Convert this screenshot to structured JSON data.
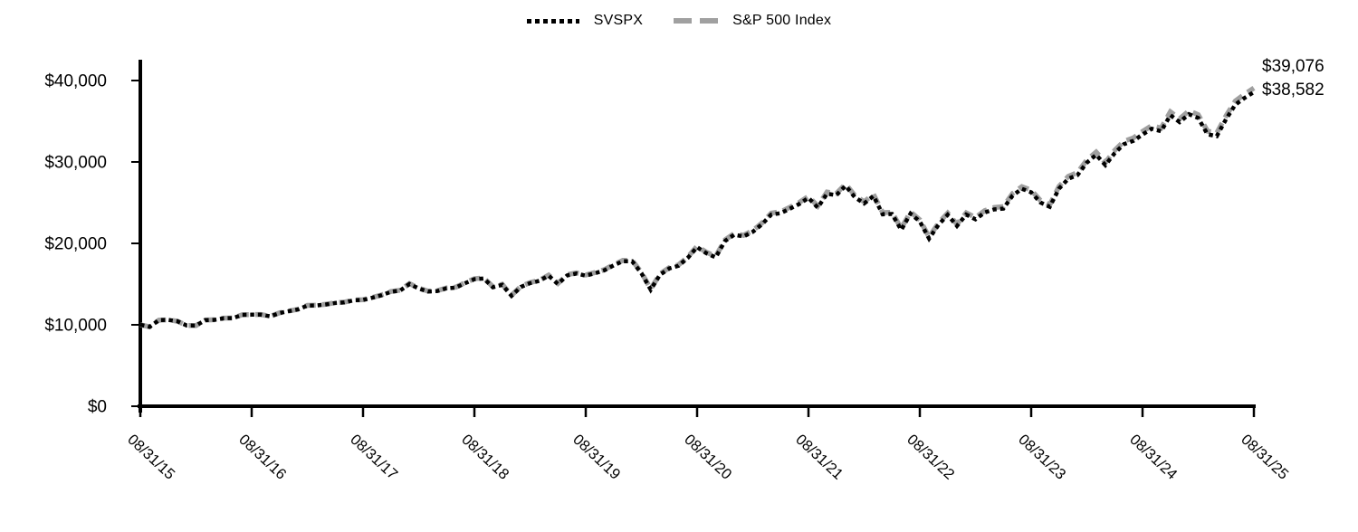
{
  "legend": {
    "items": [
      {
        "label": "SVSPX",
        "color": "#000000",
        "line_style": "dotted"
      },
      {
        "label": "S&P 500 Index",
        "color": "#a0a0a0",
        "line_style": "dashed"
      }
    ]
  },
  "chart_data": {
    "type": "line",
    "title": "",
    "xlabel": "",
    "ylabel": "",
    "ylim": [
      0,
      40000
    ],
    "y_tick_values": [
      0,
      10000,
      20000,
      30000,
      40000
    ],
    "y_tick_labels": [
      "$0",
      "$10,000",
      "$20,000",
      "$30,000",
      "$40,000"
    ],
    "x_tick_labels": [
      "08/31/15",
      "08/31/16",
      "08/31/17",
      "08/31/18",
      "08/31/19",
      "08/31/20",
      "08/31/21",
      "08/31/22",
      "08/31/23",
      "08/31/24",
      "08/31/25"
    ],
    "x_points_per_interval": 12,
    "grid": false,
    "legend_position": "top-center",
    "series": [
      {
        "name": "SVSPX",
        "color": "#000000",
        "dash": "dotted",
        "end_label": "$38,582",
        "end_value": 38582,
        "values": [
          10000,
          9752,
          10574,
          10605,
          10436,
          9917,
          9903,
          10573,
          10613,
          10803,
          10830,
          11228,
          11243,
          11243,
          11038,
          11445,
          11670,
          11891,
          12361,
          12375,
          12501,
          12676,
          12756,
          13017,
          13056,
          13324,
          13632,
          14050,
          14204,
          15016,
          14460,
          14091,
          14144,
          14483,
          14572,
          15112,
          15602,
          15689,
          14615,
          14911,
          13563,
          14648,
          15116,
          15408,
          16031,
          15011,
          16067,
          16298,
          16038,
          16336,
          16688,
          17292,
          17812,
          17805,
          16335,
          14317,
          16151,
          16918,
          17252,
          18224,
          19531,
          18787,
          18285,
          20284,
          21061,
          20846,
          21419,
          22355,
          23546,
          23708,
          24258,
          24833,
          25586,
          24393,
          26101,
          25918,
          27074,
          25672,
          24902,
          25822,
          23568,
          23610,
          21660,
          23655,
          22687,
          20596,
          22262,
          23503,
          22147,
          23535,
          22958,
          23799,
          24168,
          24271,
          25872,
          26701,
          26273,
          25019,
          24490,
          26724,
          27933,
          28401,
          29915,
          30875,
          29613,
          31080,
          32191,
          32581,
          33371,
          34082,
          33769,
          35749,
          34895,
          35865,
          35395,
          33398,
          33167,
          35250,
          37041,
          37868,
          38582
        ]
      },
      {
        "name": "S&P 500 Index",
        "color": "#a0a0a0",
        "dash": "dashed",
        "end_label": "$39,076",
        "end_value": 39076,
        "values": [
          10000,
          9753,
          10576,
          10608,
          10440,
          9922,
          9909,
          10581,
          10622,
          10813,
          10841,
          11241,
          11257,
          11259,
          11054,
          11463,
          11690,
          11912,
          12385,
          12400,
          12528,
          12704,
          12786,
          13049,
          13089,
          13359,
          13670,
          14090,
          14246,
          15062,
          14506,
          14138,
          14192,
          14534,
          14624,
          15168,
          15662,
          15751,
          14674,
          14973,
          13621,
          14712,
          15184,
          15479,
          16106,
          15083,
          16146,
          16379,
          16120,
          16421,
          16777,
          17386,
          17911,
          17904,
          16430,
          14401,
          16247,
          17020,
          17359,
          18338,
          19656,
          18909,
          18406,
          20421,
          21205,
          20991,
          21570,
          22515,
          23717,
          23883,
          24440,
          25022,
          25783,
          24584,
          26307,
          26125,
          27295,
          25884,
          25110,
          26042,
          23771,
          23814,
          21849,
          23863,
          22889,
          20781,
          22464,
          23720,
          22354,
          23758,
          23178,
          24029,
          24404,
          24509,
          26129,
          26968,
          26539,
          25273,
          24742,
          27001,
          28227,
          28701,
          30234,
          31207,
          29934,
          31419,
          32547,
          32944,
          33745,
          34467,
          34153,
          36158,
          35297,
          36278,
          35806,
          33790,
          33560,
          35671,
          37487,
          38327,
          39076
        ]
      }
    ]
  }
}
